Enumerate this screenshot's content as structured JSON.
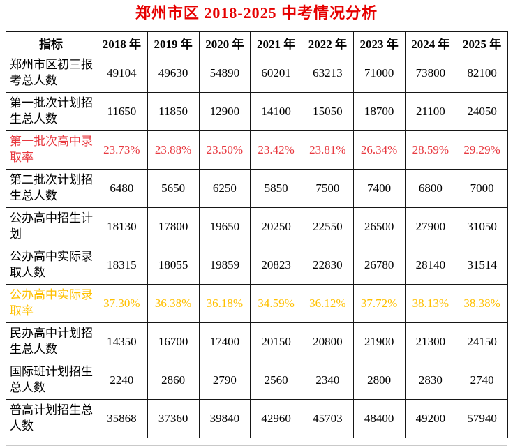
{
  "title": "郑州市区 2018-2025 中考情况分析",
  "colors": {
    "title": "#e60000",
    "highlight_red": "#e8383f",
    "highlight_orange": "#ffc000",
    "border": "#161616"
  },
  "table": {
    "header": [
      "指标",
      "2018 年",
      "2019 年",
      "2020 年",
      "2021 年",
      "2022 年",
      "2023 年",
      "2024 年",
      "2025 年"
    ],
    "rows": [
      {
        "label": "郑州市区初三报考总人数",
        "highlight": null,
        "values": [
          "49104",
          "49630",
          "54890",
          "60201",
          "63213",
          "71000",
          "73800",
          "82100"
        ]
      },
      {
        "label": "第一批次计划招生总人数",
        "highlight": null,
        "values": [
          "11650",
          "11850",
          "12900",
          "14100",
          "15050",
          "18700",
          "21100",
          "24050"
        ]
      },
      {
        "label": "第一批次高中录取率",
        "highlight": "red",
        "values": [
          "23.73%",
          "23.88%",
          "23.50%",
          "23.42%",
          "23.81%",
          "26.34%",
          "28.59%",
          "29.29%"
        ]
      },
      {
        "label": "第二批次计划招生总人数",
        "highlight": null,
        "values": [
          "6480",
          "5650",
          "6250",
          "5850",
          "7500",
          "7400",
          "6800",
          "7000"
        ]
      },
      {
        "label": "公办高中招生计划",
        "highlight": null,
        "values": [
          "18130",
          "17800",
          "19650",
          "20250",
          "22550",
          "26500",
          "27900",
          "31050"
        ]
      },
      {
        "label": "公办高中实际录取人数",
        "highlight": null,
        "values": [
          "18315",
          "18055",
          "19859",
          "20823",
          "22830",
          "26780",
          "28140",
          "31514"
        ]
      },
      {
        "label": "公办高中实际录取率",
        "highlight": "orange",
        "values": [
          "37.30%",
          "36.38%",
          "36.18%",
          "34.59%",
          "36.12%",
          "37.72%",
          "38.13%",
          "38.38%"
        ]
      },
      {
        "label": "民办高中计划招生总人数",
        "highlight": null,
        "values": [
          "14350",
          "16700",
          "17400",
          "20150",
          "20800",
          "21900",
          "21300",
          "24150"
        ]
      },
      {
        "label": "国际班计划招生总人数",
        "highlight": null,
        "values": [
          "2240",
          "2860",
          "2790",
          "2560",
          "2340",
          "2800",
          "2830",
          "2740"
        ]
      },
      {
        "label": "普高计划招生总人数",
        "highlight": null,
        "values": [
          "35868",
          "37360",
          "39840",
          "42960",
          "45703",
          "48400",
          "49200",
          "57940"
        ]
      }
    ]
  },
  "chart_data": {
    "type": "table",
    "title": "郑州市区 2018-2025 中考情况分析",
    "categories": [
      "2018",
      "2019",
      "2020",
      "2021",
      "2022",
      "2023",
      "2024",
      "2025"
    ],
    "series": [
      {
        "name": "郑州市区初三报考总人数",
        "values": [
          49104,
          49630,
          54890,
          60201,
          63213,
          71000,
          73800,
          82100
        ]
      },
      {
        "name": "第一批次计划招生总人数",
        "values": [
          11650,
          11850,
          12900,
          14100,
          15050,
          18700,
          21100,
          24050
        ]
      },
      {
        "name": "第一批次高中录取率(%)",
        "values": [
          23.73,
          23.88,
          23.5,
          23.42,
          23.81,
          26.34,
          28.59,
          29.29
        ]
      },
      {
        "name": "第二批次计划招生总人数",
        "values": [
          6480,
          5650,
          6250,
          5850,
          7500,
          7400,
          6800,
          7000
        ]
      },
      {
        "name": "公办高中招生计划",
        "values": [
          18130,
          17800,
          19650,
          20250,
          22550,
          26500,
          27900,
          31050
        ]
      },
      {
        "name": "公办高中实际录取人数",
        "values": [
          18315,
          18055,
          19859,
          20823,
          22830,
          26780,
          28140,
          31514
        ]
      },
      {
        "name": "公办高中实际录取率(%)",
        "values": [
          37.3,
          36.38,
          36.18,
          34.59,
          36.12,
          37.72,
          38.13,
          38.38
        ]
      },
      {
        "name": "民办高中计划招生总人数",
        "values": [
          14350,
          16700,
          17400,
          20150,
          20800,
          21900,
          21300,
          24150
        ]
      },
      {
        "name": "国际班计划招生总人数",
        "values": [
          2240,
          2860,
          2790,
          2560,
          2340,
          2800,
          2830,
          2740
        ]
      },
      {
        "name": "普高计划招生总人数",
        "values": [
          35868,
          37360,
          39840,
          42960,
          45703,
          48400,
          49200,
          57940
        ]
      }
    ]
  }
}
